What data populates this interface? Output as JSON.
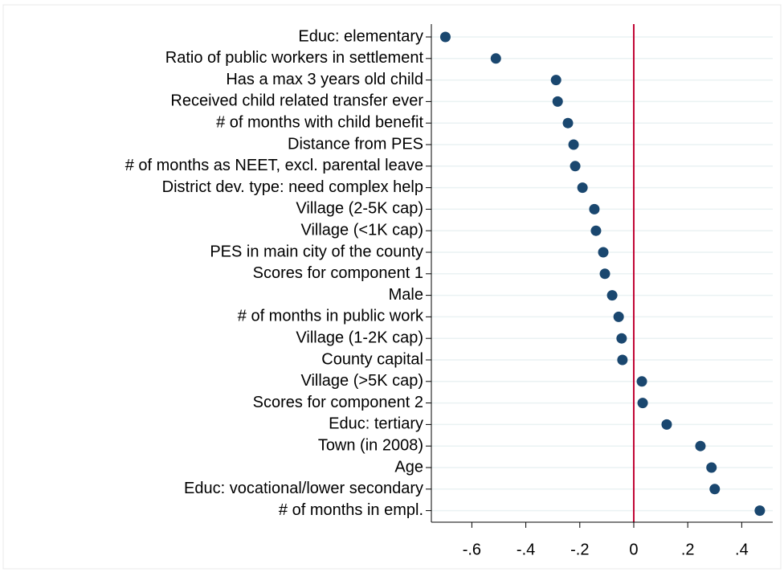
{
  "chart_data": {
    "type": "dot",
    "categories": [
      "Educ: elementary",
      "Ratio of public workers in settlement",
      "Has a max 3 years old child",
      "Received child related transfer ever",
      "# of months with child benefit",
      "Distance from PES",
      "# of months as NEET, excl. parental leave",
      "District dev. type: need complex help",
      "Village (2-5K cap)",
      "Village (<1K cap)",
      "PES in main city of the county",
      "Scores for component 1",
      "Male",
      "# of months in public work",
      "Village (1-2K cap)",
      "County capital",
      "Village (>5K cap)",
      "Scores for component 2",
      "Educ: tertiary",
      "Town (in 2008)",
      "Age",
      "Educ: vocational/lower secondary",
      "# of months in empl."
    ],
    "values": [
      -0.698,
      -0.511,
      -0.288,
      -0.282,
      -0.244,
      -0.223,
      -0.217,
      -0.19,
      -0.146,
      -0.14,
      -0.113,
      -0.107,
      -0.08,
      -0.056,
      -0.045,
      -0.042,
      0.03,
      0.033,
      0.122,
      0.247,
      0.288,
      0.3,
      0.467
    ],
    "color": "#1a476f",
    "xlim": [
      -0.75,
      0.515
    ],
    "xticks": [
      {
        "value": -0.6,
        "label": "-.6"
      },
      {
        "value": -0.4,
        "label": "-.4"
      },
      {
        "value": -0.2,
        "label": "-.2"
      },
      0,
      {
        "value": 0.2,
        "label": ".2"
      },
      {
        "value": 0.4,
        "label": ".4"
      }
    ],
    "reference_line": 0,
    "reference_color": "#c10534",
    "grid": true
  }
}
